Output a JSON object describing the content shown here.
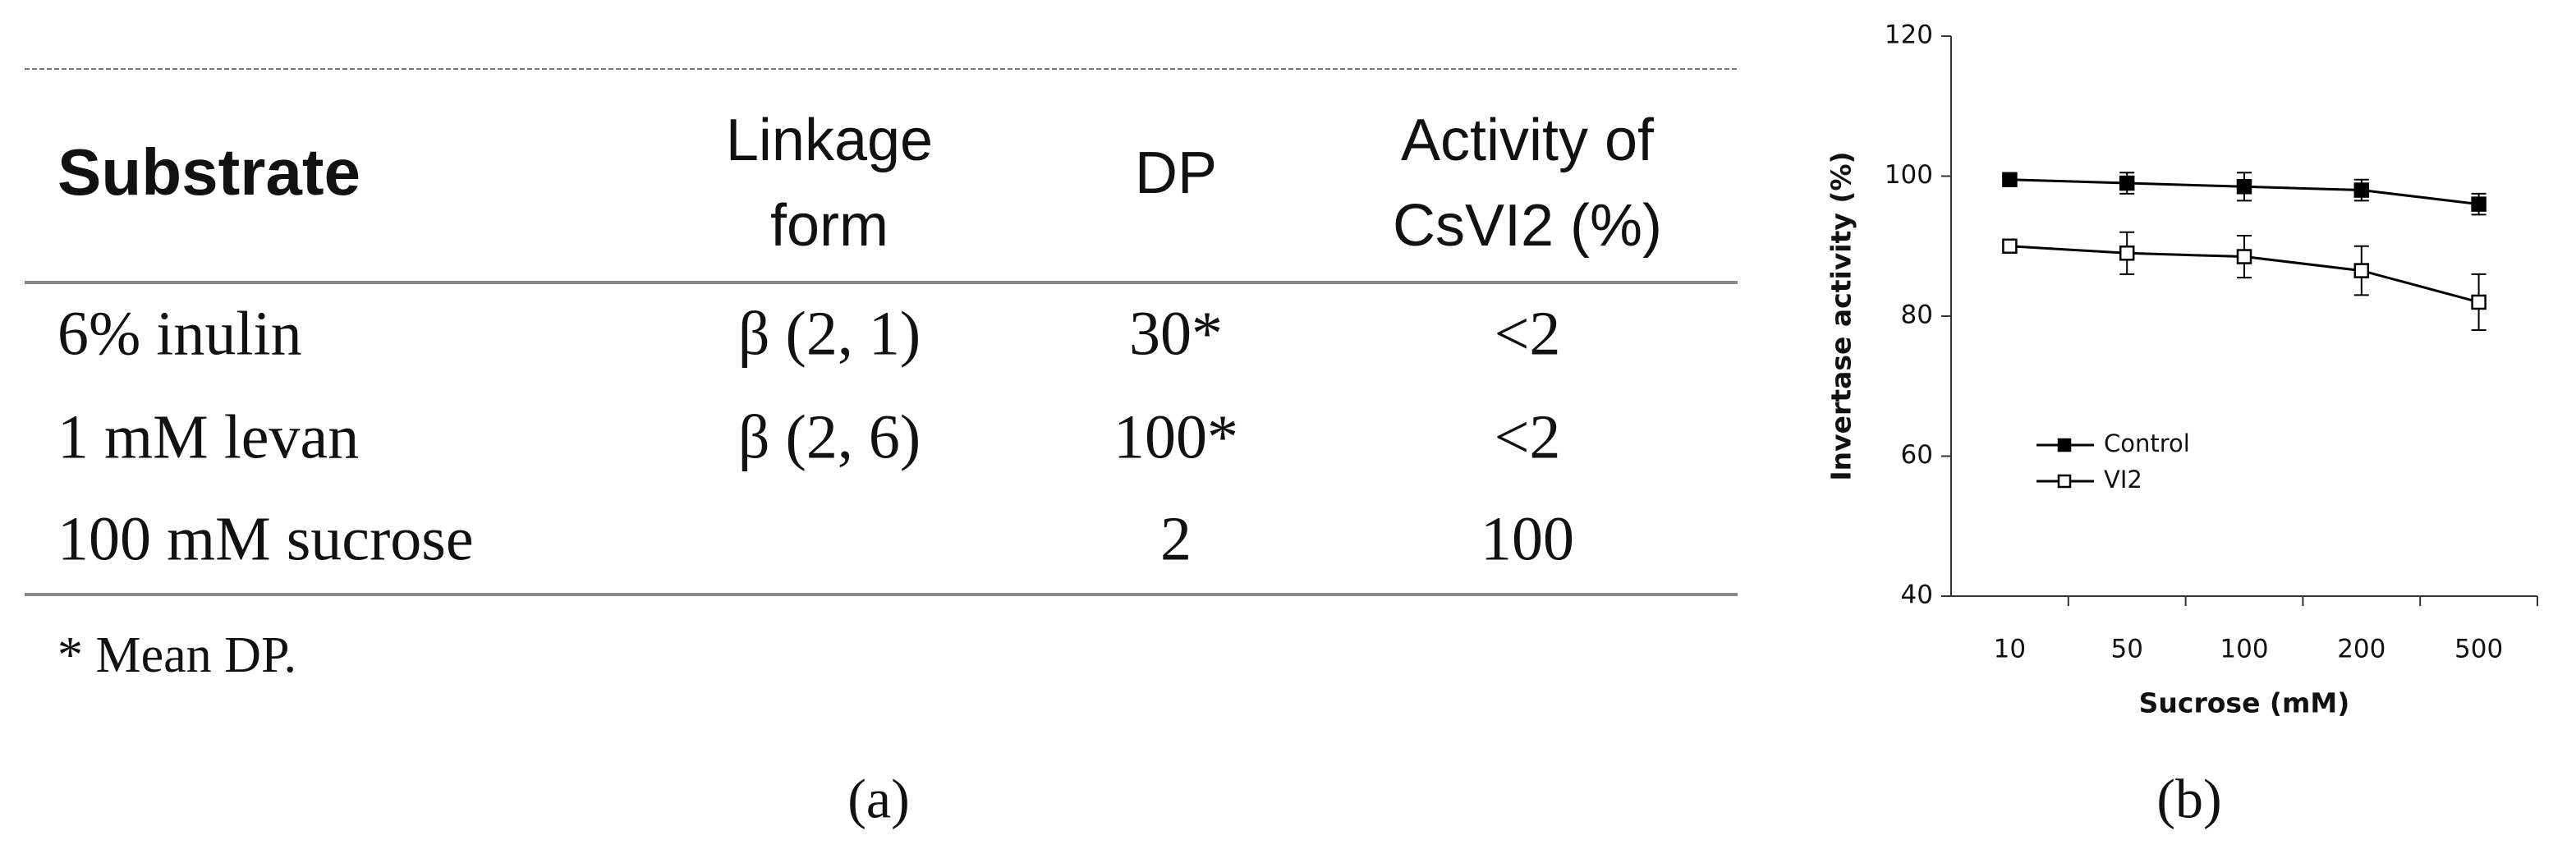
{
  "table": {
    "header": [
      [
        "Substrate"
      ],
      [
        "Linkage",
        "form"
      ],
      [
        "DP"
      ],
      [
        "Activity of",
        "CsVI2 (%)"
      ]
    ],
    "rows": [
      [
        "6% inulin",
        "β (2, 1)",
        "30*",
        "<2"
      ],
      [
        "1 mM levan",
        "β (2, 6)",
        "100*",
        "<2"
      ],
      [
        "100 mM sucrose",
        null,
        "2",
        "100"
      ]
    ],
    "footnote": "* Mean DP.",
    "caption": "(a)"
  },
  "chart_data": {
    "type": "line",
    "x_label": "Sucrose (mM)",
    "y_label": "Invertase activity  (%)",
    "categories": [
      "10",
      "50",
      "100",
      "200",
      "500"
    ],
    "series": [
      {
        "name": "Control",
        "color": "#000000",
        "marker_fill": "#000000",
        "values": [
          99.5,
          99,
          98.5,
          98,
          96
        ],
        "errors": [
          0.5,
          1.5,
          2,
          1.5,
          1.5
        ]
      },
      {
        "name": "VI2",
        "color": "#000000",
        "marker_fill": "#ffffff",
        "values": [
          90,
          89,
          88.5,
          86.5,
          82
        ],
        "errors": [
          0.5,
          3,
          3,
          3.5,
          4
        ]
      }
    ],
    "ylim": [
      40,
      120
    ],
    "yticks": [
      40,
      60,
      80,
      100,
      120
    ],
    "legend": "lower left",
    "caption": "(b)"
  }
}
